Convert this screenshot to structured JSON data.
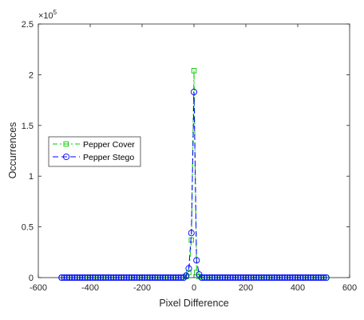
{
  "chart_data": {
    "type": "line",
    "xlabel": "Pixel Difference",
    "ylabel": "Occurrences",
    "xlim": [
      -600,
      600
    ],
    "ylim": [
      0,
      250000
    ],
    "xticks": [
      "-600",
      "-400",
      "-200",
      "0",
      "200",
      "400",
      "600"
    ],
    "yticks": [
      "0",
      "0.5",
      "1",
      "1.5",
      "2",
      "2.5"
    ],
    "y_exponent_base": "×10",
    "y_exponent_power": "5",
    "grid": false,
    "legend_placement": "middle-left",
    "marker_step": 10,
    "x_range": [
      -510,
      510
    ],
    "series": [
      {
        "name": "Pepper Cover",
        "color": "#00cc00",
        "marker": "square",
        "linestyle": "dash-dot",
        "points": [
          {
            "x": -30,
            "y": 1000
          },
          {
            "x": -20,
            "y": 5000
          },
          {
            "x": -10,
            "y": 37000
          },
          {
            "x": 0,
            "y": 204000
          },
          {
            "x": 10,
            "y": 5000
          },
          {
            "x": 20,
            "y": 1000
          }
        ]
      },
      {
        "name": "Pepper Stego",
        "color": "#0000ff",
        "marker": "circle",
        "linestyle": "dash",
        "points": [
          {
            "x": -30,
            "y": 2000
          },
          {
            "x": -20,
            "y": 9000
          },
          {
            "x": -10,
            "y": 44000
          },
          {
            "x": 0,
            "y": 183000
          },
          {
            "x": 10,
            "y": 17000
          },
          {
            "x": 20,
            "y": 3000
          }
        ]
      }
    ]
  }
}
